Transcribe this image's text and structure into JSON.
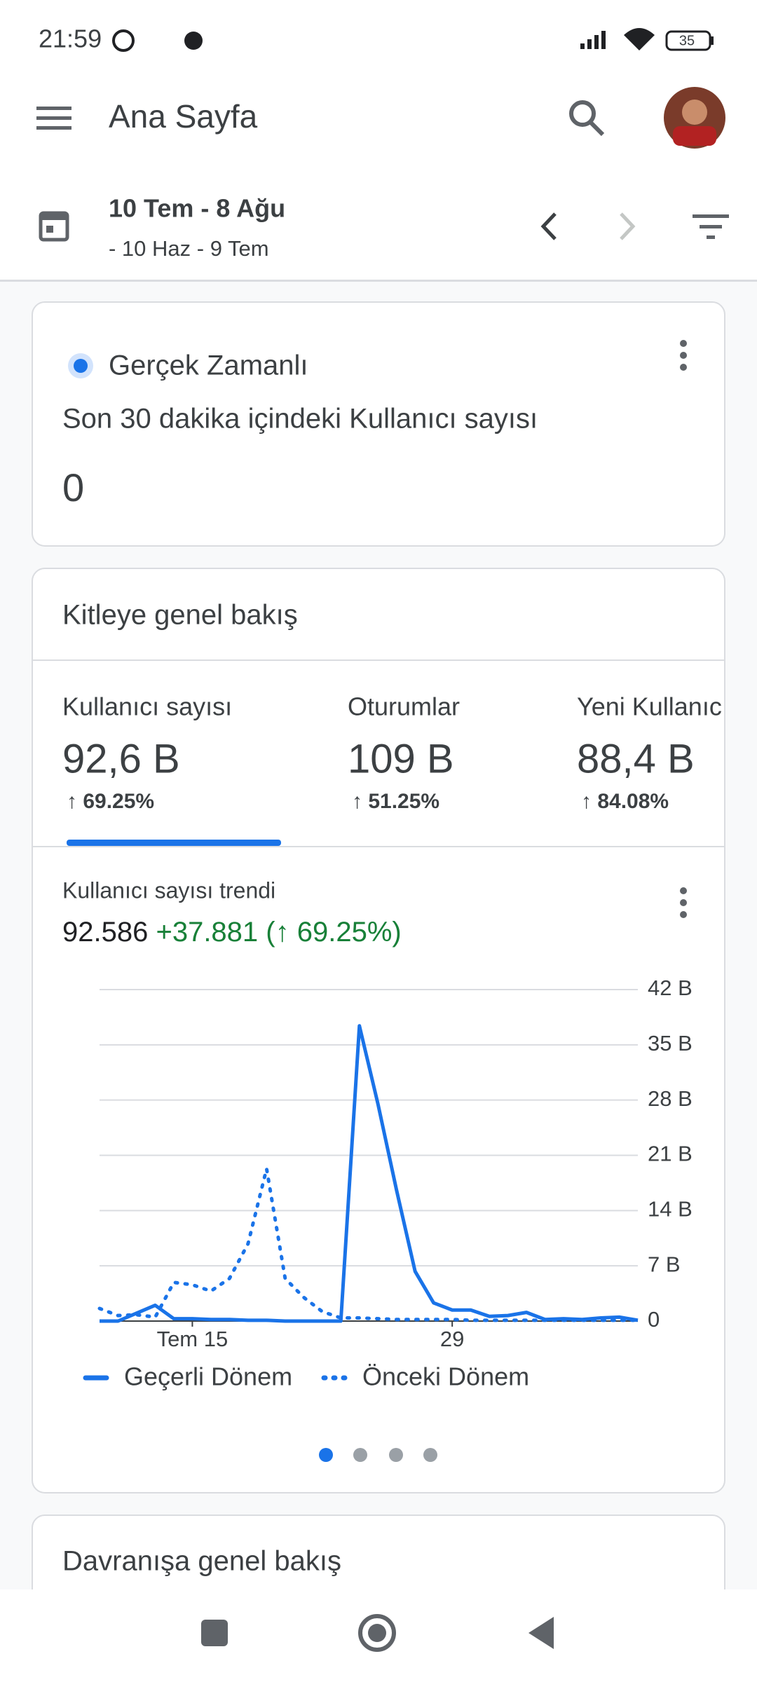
{
  "status_bar": {
    "time": "21:59",
    "battery": "35"
  },
  "app_bar": {
    "title": "Ana Sayfa"
  },
  "date_range": {
    "current": "10 Tem - 8 Ağu",
    "previous": "- 10 Haz - 9 Tem"
  },
  "realtime": {
    "title": "Gerçek Zamanlı",
    "subtitle": "Son 30 dakika içindeki Kullanıcı sayısı",
    "value": "0"
  },
  "audience": {
    "title": "Kitleye genel bakış",
    "metrics": [
      {
        "label": "Kullanıcı sayısı",
        "value": "92,6 B",
        "change": "↑ 69.25%"
      },
      {
        "label": "Oturumlar",
        "value": "109 B",
        "change": "↑ 51.25%"
      },
      {
        "label": "Yeni Kullanıc",
        "value": "88,4 B",
        "change": "↑ 84.08%"
      }
    ],
    "trend_title": "Kullanıcı sayısı trendi",
    "trend_total": "92.586",
    "trend_change": "+37.881 (↑ 69.25%)"
  },
  "chart_data": {
    "type": "line",
    "categories": [
      null,
      null,
      null,
      null,
      null,
      "Tem 15",
      null,
      null,
      null,
      null,
      null,
      null,
      null,
      null,
      null,
      null,
      null,
      null,
      null,
      "29",
      null,
      null,
      null,
      null,
      null,
      null,
      null,
      null,
      null,
      null
    ],
    "series": [
      {
        "name": "Geçerli Dönem",
        "color": "#1a73e8",
        "style": "solid",
        "values": [
          0,
          0,
          1,
          2,
          0.3,
          0.3,
          0.2,
          0.2,
          0.1,
          0.1,
          0,
          0,
          0,
          0,
          37.4,
          27.5,
          16.6,
          6.3,
          2.3,
          1.4,
          1.4,
          0.6,
          0.7,
          1.1,
          0.2,
          0.3,
          0.2,
          0.4,
          0.5,
          0.1
        ]
      },
      {
        "name": "Önceki Dönem",
        "color": "#1a73e8",
        "style": "dotted",
        "values": [
          1.6,
          0.7,
          0.8,
          0.5,
          4.9,
          4.6,
          3.8,
          5.4,
          9.8,
          19.3,
          5.4,
          3,
          1.2,
          0.4,
          0.4,
          0.3,
          0.2,
          0.2,
          0.2,
          0.2,
          0.1,
          0.1,
          0.1,
          0.1,
          0.1,
          0.1,
          0.1,
          0.1,
          0.1,
          0.1
        ]
      }
    ],
    "ylim": [
      0,
      42
    ],
    "yticks": [
      0,
      {
        "value": 7,
        "label": "7 B"
      },
      {
        "value": 14,
        "label": "14 B"
      },
      {
        "value": 21,
        "label": "21 B"
      },
      {
        "value": 28,
        "label": "28 B"
      },
      {
        "value": 35,
        "label": "35 B"
      },
      {
        "value": 42,
        "label": "42 B"
      }
    ],
    "grid": true
  },
  "behavior": {
    "title": "Davranışa genel bakış"
  }
}
